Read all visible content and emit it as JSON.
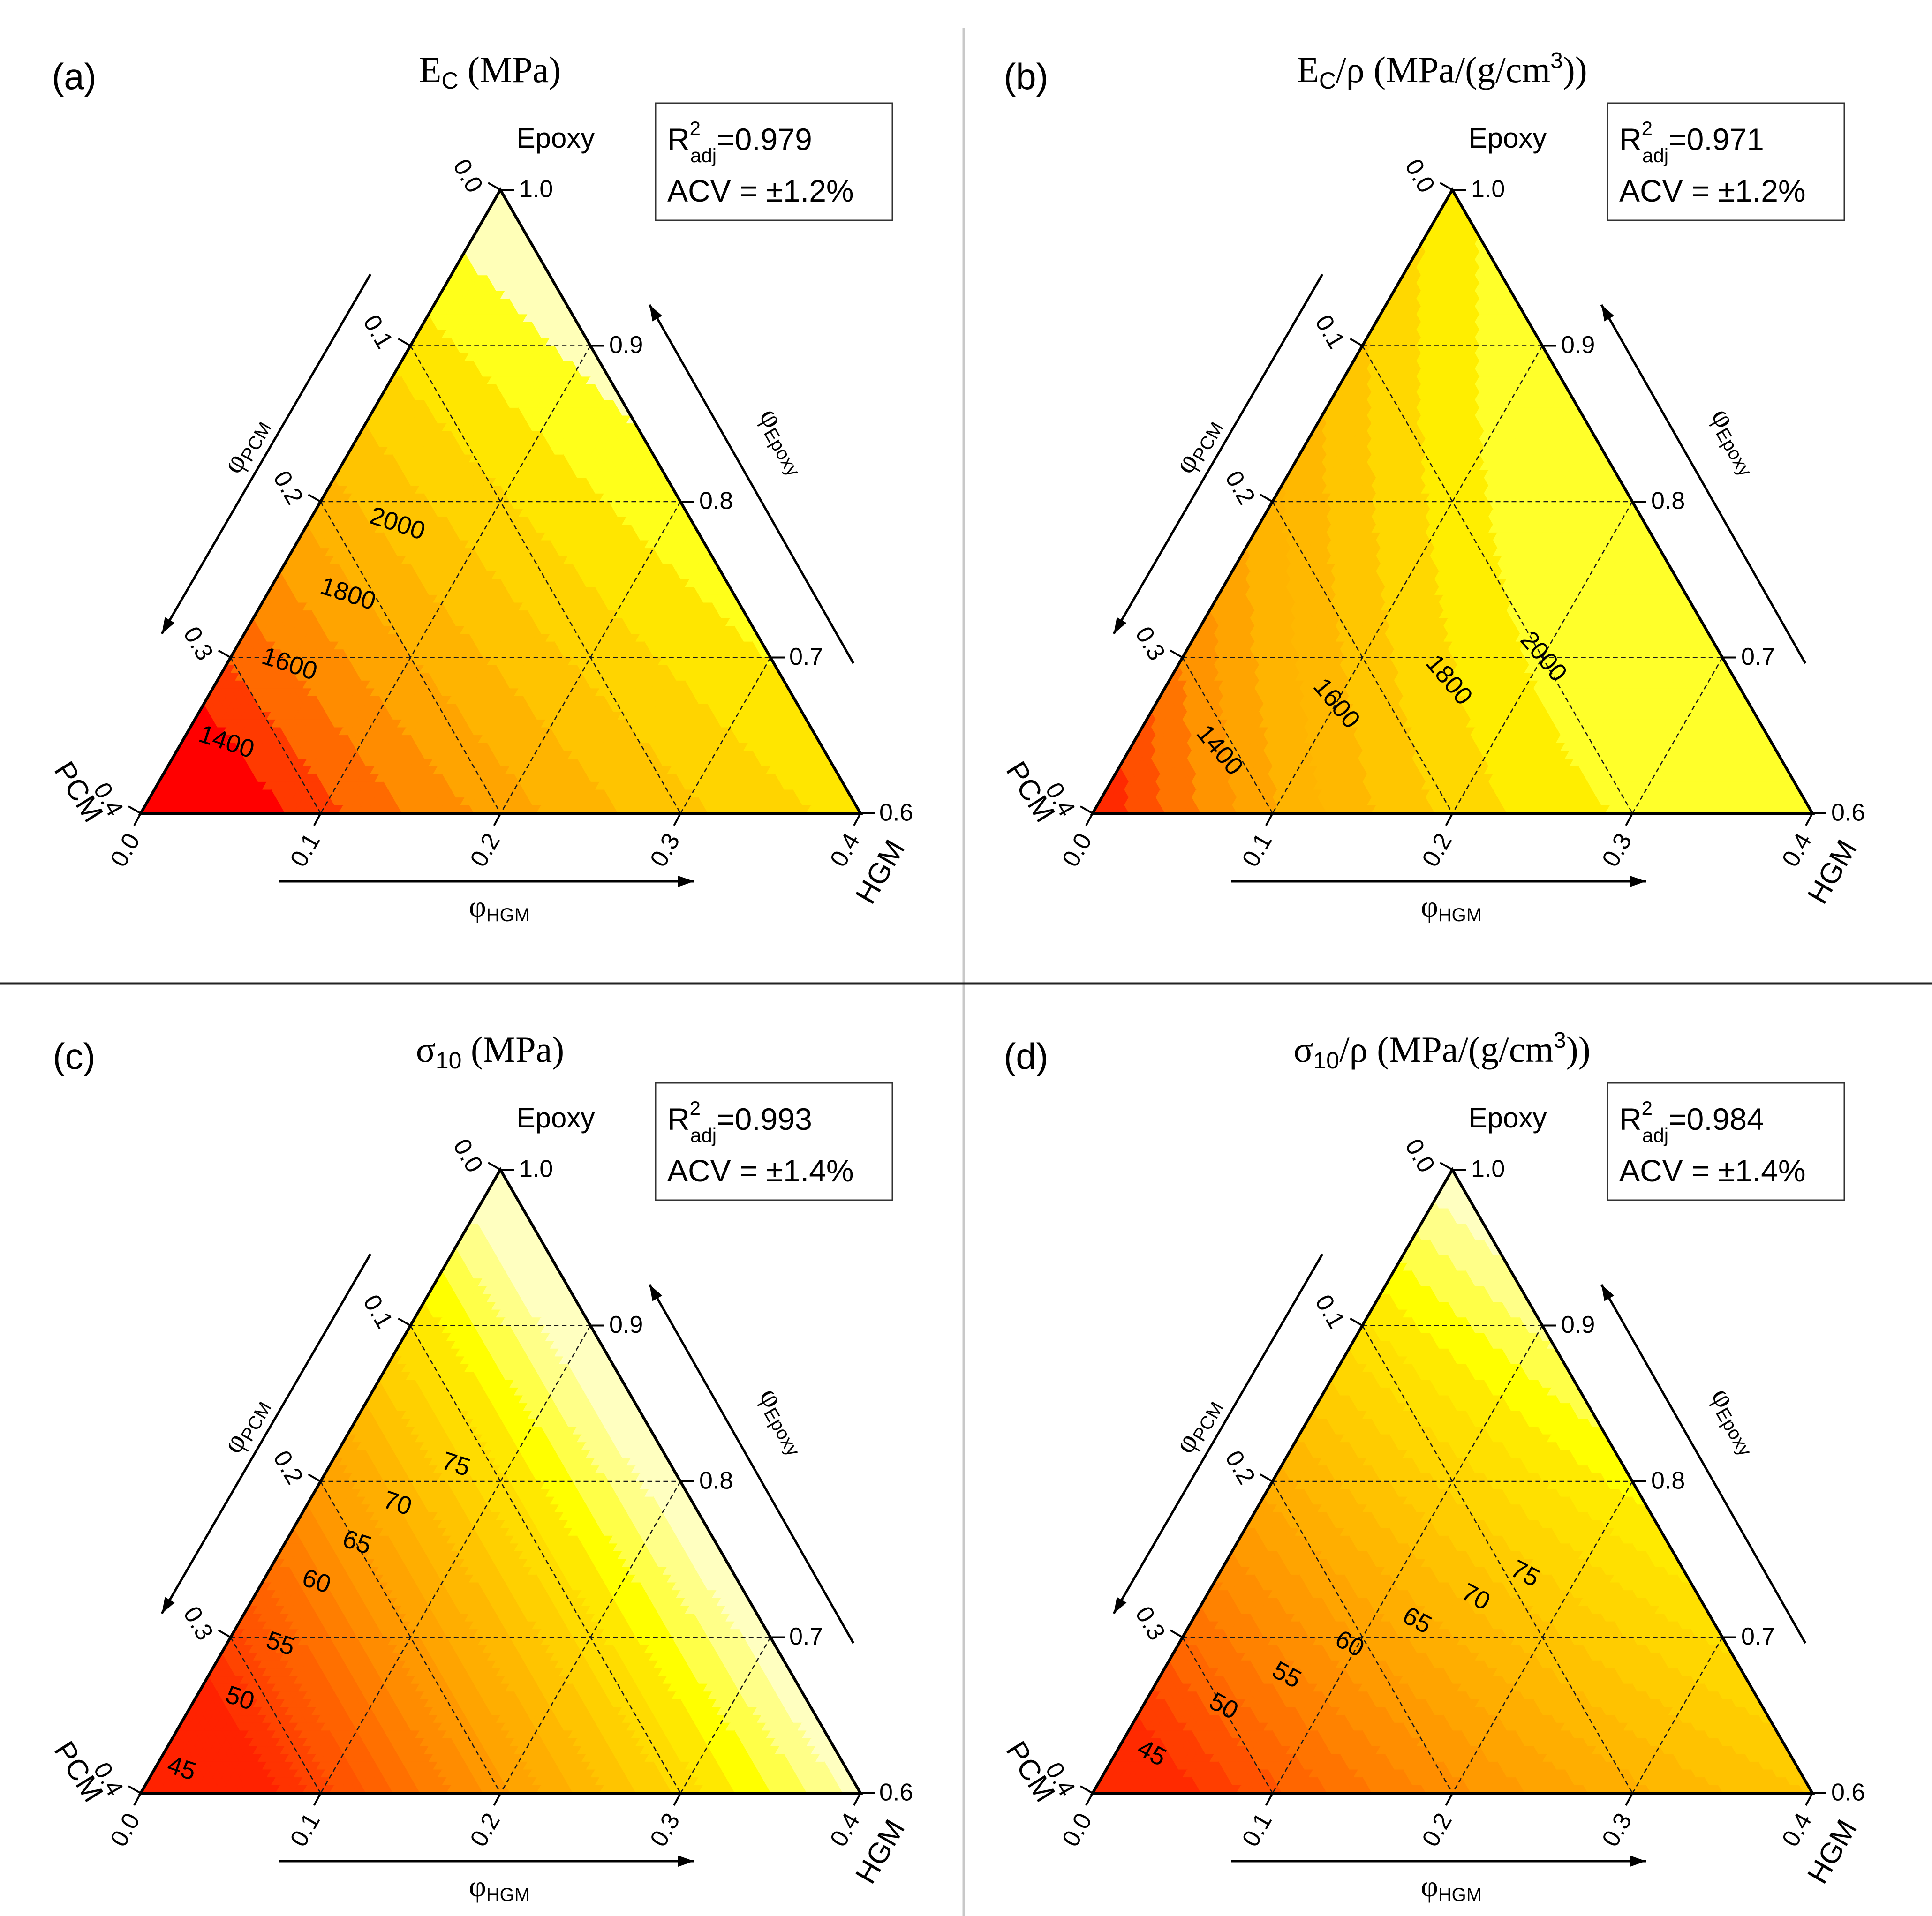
{
  "chart_data": [
    {
      "type": "ternary-contour",
      "panel_label": "(a)",
      "title": "E_C (MPa)",
      "title_main": "E",
      "title_sub": "C",
      "title_rest": " (MPa)",
      "vertices": {
        "top": "Epoxy",
        "left": "PCM",
        "right": "HGM"
      },
      "axes": {
        "epoxy": {
          "label": "φEpoxy",
          "symbol": "φ",
          "sub": "Epoxy",
          "range": [
            0.6,
            1.0
          ],
          "ticks": [
            "1.0",
            "0.9",
            "0.8",
            "0.7",
            "0.6"
          ]
        },
        "pcm": {
          "label": "φPCM",
          "symbol": "φ",
          "sub": "PCM",
          "range": [
            0.0,
            0.4
          ],
          "ticks": [
            "0.0",
            "0.1",
            "0.2",
            "0.3",
            "0.4"
          ]
        },
        "hgm": {
          "label": "φHGM",
          "symbol": "φ",
          "sub": "HGM",
          "range": [
            0.0,
            0.4
          ],
          "ticks": [
            "0.0",
            "0.1",
            "0.2",
            "0.3",
            "0.4"
          ]
        }
      },
      "stats": {
        "r2_main": "R",
        "r2_sup": "2",
        "r2_sub": "adj",
        "r2_value": "=0.979",
        "acv": "ACV = ±1.2%"
      },
      "contour_levels": [
        1300,
        1400,
        1500,
        1600,
        1700,
        1800,
        1900,
        2000,
        2100,
        2200,
        2300
      ],
      "contour_labels": [
        {
          "value": "2000",
          "pcm": 0.165,
          "hgm": 0.05
        },
        {
          "value": "1800",
          "pcm": 0.215,
          "hgm": 0.045
        },
        {
          "value": "1600",
          "pcm": 0.27,
          "hgm": 0.035
        },
        {
          "value": "1400",
          "pcm": 0.33,
          "hgm": 0.025
        }
      ],
      "colors": [
        "#ff0000",
        "#ff3a00",
        "#ff6a00",
        "#ff8c00",
        "#ffa400",
        "#ffb400",
        "#ffc400",
        "#ffd400",
        "#ffe600",
        "#ffff1a",
        "#ffffb8"
      ]
    },
    {
      "type": "ternary-contour",
      "panel_label": "(b)",
      "title": "E_C/ρ (MPa/(g/cm3))",
      "title_main": "E",
      "title_sub": "C",
      "title_rest": "/ρ (MPa/(g/cm",
      "title_sup": "3",
      "title_end": "))",
      "vertices": {
        "top": "Epoxy",
        "left": "PCM",
        "right": "HGM"
      },
      "axes": {
        "epoxy": {
          "label": "φEpoxy",
          "symbol": "φ",
          "sub": "Epoxy",
          "range": [
            0.6,
            1.0
          ],
          "ticks": [
            "1.0",
            "0.9",
            "0.8",
            "0.7",
            "0.6"
          ]
        },
        "pcm": {
          "label": "φPCM",
          "symbol": "φ",
          "sub": "PCM",
          "range": [
            0.0,
            0.4
          ],
          "ticks": [
            "0.0",
            "0.1",
            "0.2",
            "0.3",
            "0.4"
          ]
        },
        "hgm": {
          "label": "φHGM",
          "symbol": "φ",
          "sub": "HGM",
          "range": [
            0.0,
            0.4
          ],
          "ticks": [
            "0.0",
            "0.1",
            "0.2",
            "0.3",
            "0.4"
          ]
        }
      },
      "stats": {
        "r2_main": "R",
        "r2_sup": "2",
        "r2_sub": "adj",
        "r2_value": "=0.971",
        "acv": "ACV = ±1.2%"
      },
      "contour_levels": [
        1200,
        1300,
        1400,
        1500,
        1600,
        1700,
        1800,
        1900,
        2000,
        2100,
        2200
      ],
      "contour_labels": [
        {
          "value": "2000",
          "pcm": 0.1,
          "hgm": 0.2
        },
        {
          "value": "1800",
          "pcm": 0.16,
          "hgm": 0.155
        },
        {
          "value": "1600",
          "pcm": 0.23,
          "hgm": 0.1
        },
        {
          "value": "1400",
          "pcm": 0.31,
          "hgm": 0.05
        }
      ],
      "colors": [
        "#ff2a00",
        "#ff5000",
        "#ff7400",
        "#ff9400",
        "#ffa400",
        "#ffb400",
        "#ffb800",
        "#ffc600",
        "#ffd800",
        "#ffee00",
        "#ffff2a"
      ]
    },
    {
      "type": "ternary-contour",
      "panel_label": "(c)",
      "title": "σ10 (MPa)",
      "title_main": "σ",
      "title_sub": "10",
      "title_rest": " (MPa)",
      "vertices": {
        "top": "Epoxy",
        "left": "PCM",
        "right": "HGM"
      },
      "axes": {
        "epoxy": {
          "label": "φEpoxy",
          "symbol": "φ",
          "sub": "Epoxy",
          "range": [
            0.6,
            1.0
          ],
          "ticks": [
            "1.0",
            "0.9",
            "0.8",
            "0.7",
            "0.6"
          ]
        },
        "pcm": {
          "label": "φPCM",
          "symbol": "φ",
          "sub": "PCM",
          "range": [
            0.0,
            0.4
          ],
          "ticks": [
            "0.0",
            "0.1",
            "0.2",
            "0.3",
            "0.4"
          ]
        },
        "hgm": {
          "label": "φHGM",
          "symbol": "φ",
          "sub": "HGM",
          "range": [
            0.0,
            0.4
          ],
          "ticks": [
            "0.0",
            "0.1",
            "0.2",
            "0.3",
            "0.4"
          ]
        }
      },
      "stats": {
        "r2_main": "R",
        "r2_sup": "2",
        "r2_sub": "adj",
        "r2_value": "=0.993",
        "acv": "ACV = ±1.4%"
      },
      "contour_levels": [
        42.5,
        45,
        47.5,
        50,
        52.5,
        55,
        57.5,
        60,
        62.5,
        65,
        67.5,
        70,
        72.5,
        75,
        77.5,
        80,
        82.5,
        85,
        87.5,
        90
      ],
      "contour_labels": [
        {
          "value": "75",
          "pcm": 0.12,
          "hgm": 0.07
        },
        {
          "value": "70",
          "pcm": 0.165,
          "hgm": 0.05
        },
        {
          "value": "65",
          "pcm": 0.2,
          "hgm": 0.04
        },
        {
          "value": "60",
          "pcm": 0.235,
          "hgm": 0.03
        },
        {
          "value": "55",
          "pcm": 0.275,
          "hgm": 0.03
        },
        {
          "value": "50",
          "pcm": 0.315,
          "hgm": 0.025
        },
        {
          "value": "45",
          "pcm": 0.37,
          "hgm": 0.015
        }
      ],
      "colors": [
        "#ff2200",
        "#ff3300",
        "#ff4400",
        "#ff5500",
        "#ff6200",
        "#ff7000",
        "#ff7e00",
        "#ff8c00",
        "#ff9800",
        "#ffa400",
        "#ffae00",
        "#ffb800",
        "#ffc400",
        "#ffd000",
        "#ffdc00",
        "#ffe800",
        "#ffff00",
        "#ffff48",
        "#ffff88",
        "#ffffc0"
      ]
    },
    {
      "type": "ternary-contour",
      "panel_label": "(d)",
      "title": "σ10/ρ (MPa/(g/cm3))",
      "title_main": "σ",
      "title_sub": "10",
      "title_rest": "/ρ (MPa/(g/cm",
      "title_sup": "3",
      "title_end": "))",
      "vertices": {
        "top": "Epoxy",
        "left": "PCM",
        "right": "HGM"
      },
      "axes": {
        "epoxy": {
          "label": "φEpoxy",
          "symbol": "φ",
          "sub": "Epoxy",
          "range": [
            0.6,
            1.0
          ],
          "ticks": [
            "1.0",
            "0.9",
            "0.8",
            "0.7",
            "0.6"
          ]
        },
        "pcm": {
          "label": "φPCM",
          "symbol": "φ",
          "sub": "PCM",
          "range": [
            0.0,
            0.4
          ],
          "ticks": [
            "0.0",
            "0.1",
            "0.2",
            "0.3",
            "0.4"
          ]
        },
        "hgm": {
          "label": "φHGM",
          "symbol": "φ",
          "sub": "HGM",
          "range": [
            0.0,
            0.4
          ],
          "ticks": [
            "0.0",
            "0.1",
            "0.2",
            "0.3",
            "0.4"
          ]
        }
      },
      "stats": {
        "r2_main": "R",
        "r2_sup": "2",
        "r2_sub": "adj",
        "r2_value": "=0.984",
        "acv": "ACV = ±1.4%"
      },
      "contour_levels": [
        42.5,
        45,
        47.5,
        50,
        52.5,
        55,
        57.5,
        60,
        62.5,
        65,
        67.5,
        70,
        72.5,
        75,
        77.5,
        80,
        82.5,
        85,
        87.5,
        90
      ],
      "contour_labels": [
        {
          "value": "75",
          "pcm": 0.09,
          "hgm": 0.17
        },
        {
          "value": "70",
          "pcm": 0.125,
          "hgm": 0.15
        },
        {
          "value": "65",
          "pcm": 0.165,
          "hgm": 0.125
        },
        {
          "value": "60",
          "pcm": 0.21,
          "hgm": 0.095
        },
        {
          "value": "55",
          "pcm": 0.255,
          "hgm": 0.07
        },
        {
          "value": "50",
          "pcm": 0.3,
          "hgm": 0.045
        },
        {
          "value": "45",
          "pcm": 0.355,
          "hgm": 0.02
        }
      ],
      "colors": [
        "#ff2a00",
        "#ff3e00",
        "#ff5200",
        "#ff6600",
        "#ff7400",
        "#ff8200",
        "#ff8e00",
        "#ff9a00",
        "#ffa400",
        "#ffae00",
        "#ffb800",
        "#ffc200",
        "#ffcc00",
        "#ffd600",
        "#ffe000",
        "#ffea00",
        "#ffff00",
        "#ffff48",
        "#ffff88",
        "#ffffc0"
      ]
    }
  ]
}
